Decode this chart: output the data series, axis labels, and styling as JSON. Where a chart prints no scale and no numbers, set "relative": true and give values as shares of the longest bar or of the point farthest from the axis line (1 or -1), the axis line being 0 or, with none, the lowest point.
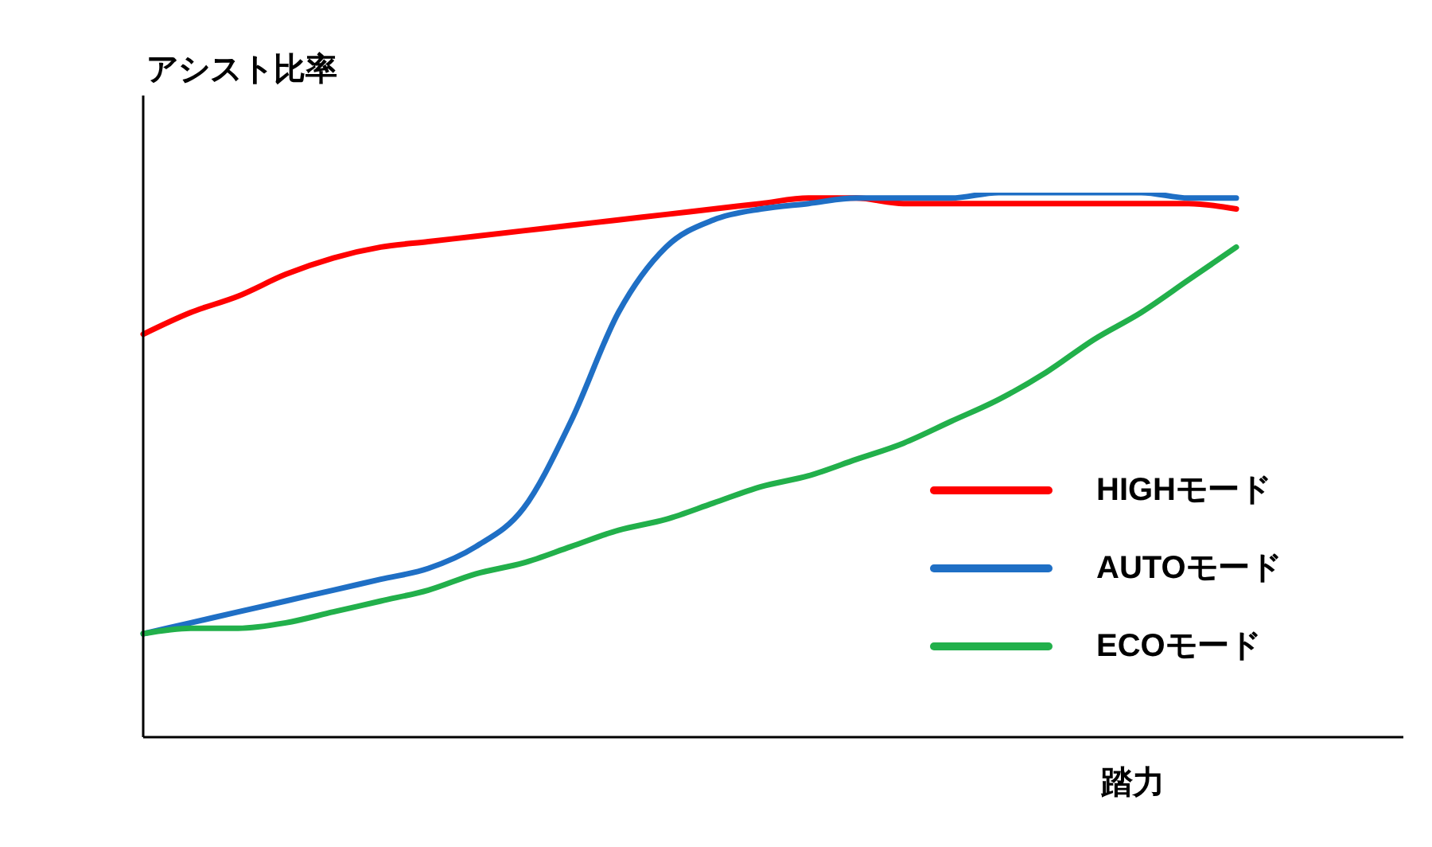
{
  "chart_data": {
    "type": "line",
    "relative": true,
    "ylabel": "アシスト比率",
    "xlabel": "踏力",
    "legend": "bottom right",
    "grid": false,
    "marker": "none",
    "line_style": "solid",
    "categories": [
      null,
      null,
      null,
      null,
      null,
      null,
      null,
      null,
      null,
      null,
      null,
      null,
      null,
      null,
      null,
      null,
      null,
      null,
      null,
      null,
      null,
      null,
      null,
      null
    ],
    "series": [
      {
        "name": "HIGHモード",
        "color": "#ff0000",
        "values": [
          0.74,
          0.78,
          0.81,
          0.85,
          0.88,
          0.9,
          0.91,
          0.92,
          0.93,
          0.94,
          0.95,
          0.96,
          0.97,
          0.98,
          0.99,
          0.99,
          0.98,
          0.98,
          0.98,
          0.98,
          0.98,
          0.98,
          0.98,
          0.97
        ]
      },
      {
        "name": "AUTOモード",
        "color": "#1f6fc5",
        "values": [
          0.19,
          0.21,
          0.23,
          0.25,
          0.27,
          0.29,
          0.31,
          0.35,
          0.42,
          0.58,
          0.78,
          0.9,
          0.95,
          0.97,
          0.98,
          0.99,
          0.99,
          0.99,
          1.0,
          1.0,
          1.0,
          1.0,
          0.99,
          0.99
        ]
      },
      {
        "name": "ECOモード",
        "color": "#22b04b",
        "values": [
          0.19,
          0.2,
          0.2,
          0.21,
          0.23,
          0.25,
          0.27,
          0.3,
          0.32,
          0.35,
          0.38,
          0.4,
          0.43,
          0.46,
          0.48,
          0.51,
          0.54,
          0.58,
          0.62,
          0.67,
          0.73,
          0.78,
          0.84,
          0.9
        ]
      }
    ]
  }
}
